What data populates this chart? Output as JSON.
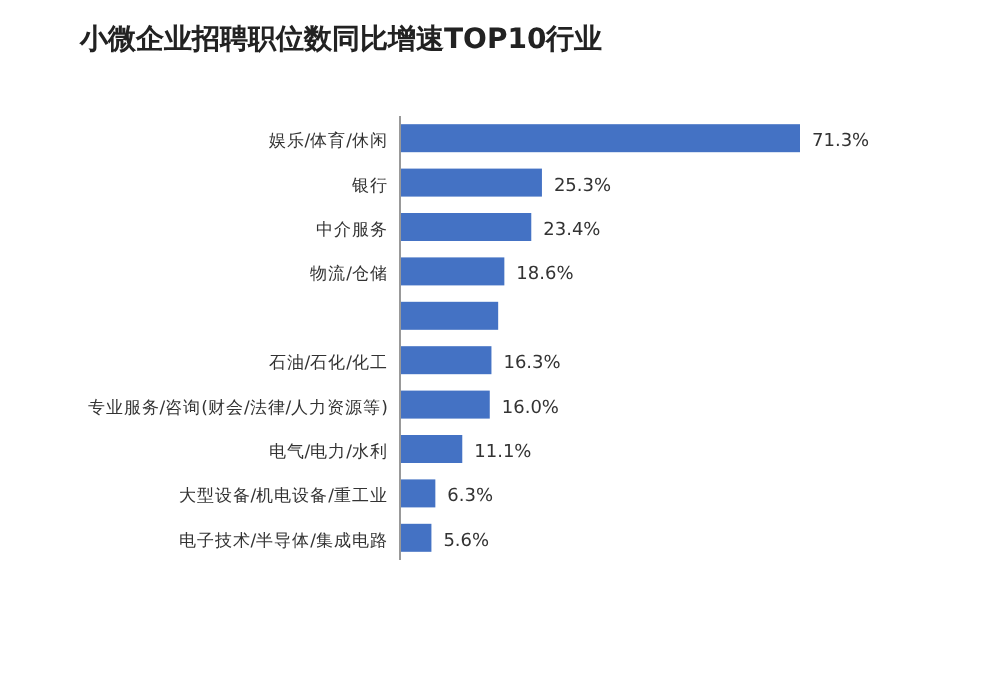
{
  "chart_data": {
    "type": "bar",
    "orientation": "horizontal",
    "title": "小微企业招聘职位数同比增速TOP10行业",
    "categories": [
      "娱乐/体育/休闲",
      "银行",
      "中介服务",
      "物流/仓储",
      null,
      "石油/石化/化工",
      "专业服务/咨询(财会/法律/人力资源等)",
      "电气/电力/水利",
      "大型设备/机电设备/重工业",
      "电子技术/半导体/集成电路"
    ],
    "values": [
      71.3,
      25.3,
      23.4,
      18.6,
      17.5,
      16.3,
      16.0,
      11.1,
      6.3,
      5.6
    ],
    "value_labels": [
      "71.3%",
      "25.3%",
      "23.4%",
      "18.6%",
      null,
      "16.3%",
      "16.0%",
      "11.1%",
      "6.3%",
      "5.6%"
    ],
    "color": "#4472c4"
  }
}
